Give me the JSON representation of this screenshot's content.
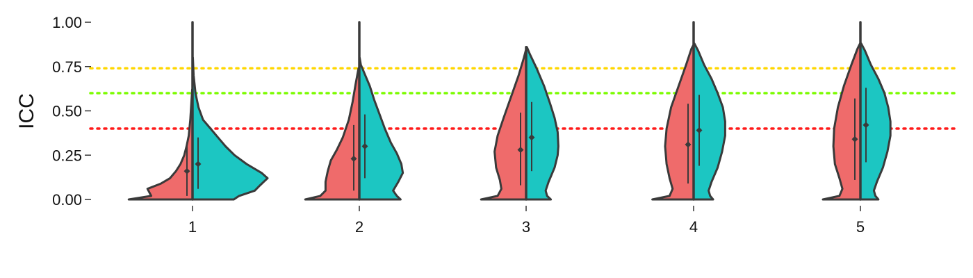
{
  "chart_data": {
    "type": "split-violin",
    "title": "",
    "xlabel": "",
    "ylabel": "ICC",
    "ylim": [
      0,
      1
    ],
    "categories": [
      "1",
      "2",
      "3",
      "4",
      "5"
    ],
    "y_ticks": [
      "0.00",
      "0.25",
      "0.50",
      "0.75",
      "1.00"
    ],
    "y_tick_values": [
      0,
      0.25,
      0.5,
      0.75,
      1.0
    ],
    "reference_lines": [
      {
        "y": 0.74,
        "color": "#FFD700",
        "style": "dotted"
      },
      {
        "y": 0.6,
        "color": "#7CFC00",
        "style": "dotted"
      },
      {
        "y": 0.4,
        "color": "#FF1A1A",
        "style": "dotted"
      }
    ],
    "series": [
      {
        "color": "#EF6B6B",
        "side": "left",
        "summary": [
          {
            "x": "1",
            "mean": 0.16,
            "low": 0.02,
            "high": 0.3
          },
          {
            "x": "2",
            "mean": 0.23,
            "low": 0.05,
            "high": 0.42
          },
          {
            "x": "3",
            "mean": 0.28,
            "low": 0.08,
            "high": 0.49
          },
          {
            "x": "4",
            "mean": 0.31,
            "low": 0.09,
            "high": 0.54
          },
          {
            "x": "5",
            "mean": 0.34,
            "low": 0.11,
            "high": 0.57
          }
        ],
        "density": [
          [
            [
              0.0,
              0.85
            ],
            [
              0.02,
              0.55
            ],
            [
              0.06,
              0.6
            ],
            [
              0.09,
              0.42
            ],
            [
              0.12,
              0.3
            ],
            [
              0.16,
              0.22
            ],
            [
              0.2,
              0.16
            ],
            [
              0.25,
              0.11
            ],
            [
              0.3,
              0.08
            ],
            [
              0.36,
              0.05
            ],
            [
              0.45,
              0.03
            ],
            [
              0.55,
              0.015
            ],
            [
              0.62,
              0.005
            ]
          ],
          [
            [
              0.0,
              0.72
            ],
            [
              0.02,
              0.52
            ],
            [
              0.05,
              0.45
            ],
            [
              0.1,
              0.45
            ],
            [
              0.16,
              0.42
            ],
            [
              0.22,
              0.38
            ],
            [
              0.28,
              0.3
            ],
            [
              0.35,
              0.22
            ],
            [
              0.45,
              0.14
            ],
            [
              0.55,
              0.09
            ],
            [
              0.65,
              0.05
            ],
            [
              0.74,
              0.01
            ]
          ],
          [
            [
              0.0,
              0.6
            ],
            [
              0.02,
              0.38
            ],
            [
              0.06,
              0.33
            ],
            [
              0.11,
              0.35
            ],
            [
              0.18,
              0.4
            ],
            [
              0.27,
              0.42
            ],
            [
              0.36,
              0.38
            ],
            [
              0.46,
              0.3
            ],
            [
              0.58,
              0.2
            ],
            [
              0.7,
              0.1
            ],
            [
              0.8,
              0.03
            ],
            [
              0.84,
              0.005
            ]
          ],
          [
            [
              0.0,
              0.55
            ],
            [
              0.02,
              0.32
            ],
            [
              0.06,
              0.28
            ],
            [
              0.12,
              0.32
            ],
            [
              0.2,
              0.36
            ],
            [
              0.3,
              0.38
            ],
            [
              0.4,
              0.36
            ],
            [
              0.52,
              0.3
            ],
            [
              0.64,
              0.2
            ],
            [
              0.76,
              0.1
            ],
            [
              0.85,
              0.03
            ],
            [
              0.87,
              0.005
            ]
          ],
          [
            [
              0.0,
              0.5
            ],
            [
              0.02,
              0.28
            ],
            [
              0.06,
              0.24
            ],
            [
              0.12,
              0.28
            ],
            [
              0.2,
              0.34
            ],
            [
              0.3,
              0.36
            ],
            [
              0.4,
              0.35
            ],
            [
              0.52,
              0.3
            ],
            [
              0.64,
              0.22
            ],
            [
              0.76,
              0.12
            ],
            [
              0.85,
              0.04
            ],
            [
              0.88,
              0.005
            ]
          ]
        ]
      },
      {
        "color": "#1CC6C2",
        "side": "right",
        "summary": [
          {
            "x": "1",
            "mean": 0.2,
            "low": 0.06,
            "high": 0.35
          },
          {
            "x": "2",
            "mean": 0.3,
            "low": 0.12,
            "high": 0.48
          },
          {
            "x": "3",
            "mean": 0.35,
            "low": 0.16,
            "high": 0.55
          },
          {
            "x": "4",
            "mean": 0.39,
            "low": 0.19,
            "high": 0.59
          },
          {
            "x": "5",
            "mean": 0.42,
            "low": 0.21,
            "high": 0.63
          }
        ],
        "density": [
          [
            [
              0.0,
              0.55
            ],
            [
              0.02,
              0.62
            ],
            [
              0.05,
              0.83
            ],
            [
              0.08,
              0.9
            ],
            [
              0.12,
              1.0
            ],
            [
              0.15,
              0.92
            ],
            [
              0.2,
              0.72
            ],
            [
              0.25,
              0.56
            ],
            [
              0.3,
              0.44
            ],
            [
              0.35,
              0.34
            ],
            [
              0.4,
              0.24
            ],
            [
              0.45,
              0.14
            ],
            [
              0.52,
              0.08
            ],
            [
              0.6,
              0.04
            ],
            [
              0.7,
              0.015
            ],
            [
              0.8,
              0.005
            ]
          ],
          [
            [
              0.0,
              0.55
            ],
            [
              0.02,
              0.5
            ],
            [
              0.05,
              0.45
            ],
            [
              0.1,
              0.52
            ],
            [
              0.15,
              0.58
            ],
            [
              0.2,
              0.56
            ],
            [
              0.26,
              0.5
            ],
            [
              0.32,
              0.42
            ],
            [
              0.4,
              0.34
            ],
            [
              0.48,
              0.27
            ],
            [
              0.56,
              0.2
            ],
            [
              0.64,
              0.14
            ],
            [
              0.72,
              0.06
            ],
            [
              0.76,
              0.02
            ],
            [
              0.8,
              0.005
            ]
          ],
          [
            [
              0.0,
              0.33
            ],
            [
              0.02,
              0.28
            ],
            [
              0.05,
              0.26
            ],
            [
              0.1,
              0.3
            ],
            [
              0.18,
              0.38
            ],
            [
              0.25,
              0.42
            ],
            [
              0.3,
              0.43
            ],
            [
              0.38,
              0.42
            ],
            [
              0.46,
              0.38
            ],
            [
              0.54,
              0.32
            ],
            [
              0.64,
              0.24
            ],
            [
              0.74,
              0.14
            ],
            [
              0.82,
              0.05
            ],
            [
              0.86,
              0.01
            ]
          ],
          [
            [
              0.0,
              0.26
            ],
            [
              0.02,
              0.22
            ],
            [
              0.05,
              0.2
            ],
            [
              0.1,
              0.24
            ],
            [
              0.18,
              0.32
            ],
            [
              0.27,
              0.38
            ],
            [
              0.36,
              0.42
            ],
            [
              0.44,
              0.42
            ],
            [
              0.52,
              0.39
            ],
            [
              0.6,
              0.32
            ],
            [
              0.68,
              0.24
            ],
            [
              0.76,
              0.14
            ],
            [
              0.84,
              0.06
            ],
            [
              0.88,
              0.01
            ]
          ],
          [
            [
              0.0,
              0.24
            ],
            [
              0.02,
              0.2
            ],
            [
              0.05,
              0.18
            ],
            [
              0.1,
              0.22
            ],
            [
              0.18,
              0.3
            ],
            [
              0.27,
              0.36
            ],
            [
              0.36,
              0.4
            ],
            [
              0.44,
              0.4
            ],
            [
              0.52,
              0.37
            ],
            [
              0.6,
              0.32
            ],
            [
              0.68,
              0.24
            ],
            [
              0.76,
              0.14
            ],
            [
              0.84,
              0.06
            ],
            [
              0.88,
              0.01
            ]
          ]
        ]
      }
    ],
    "first_group_tail": {
      "x": "1",
      "top": 1.0
    }
  }
}
